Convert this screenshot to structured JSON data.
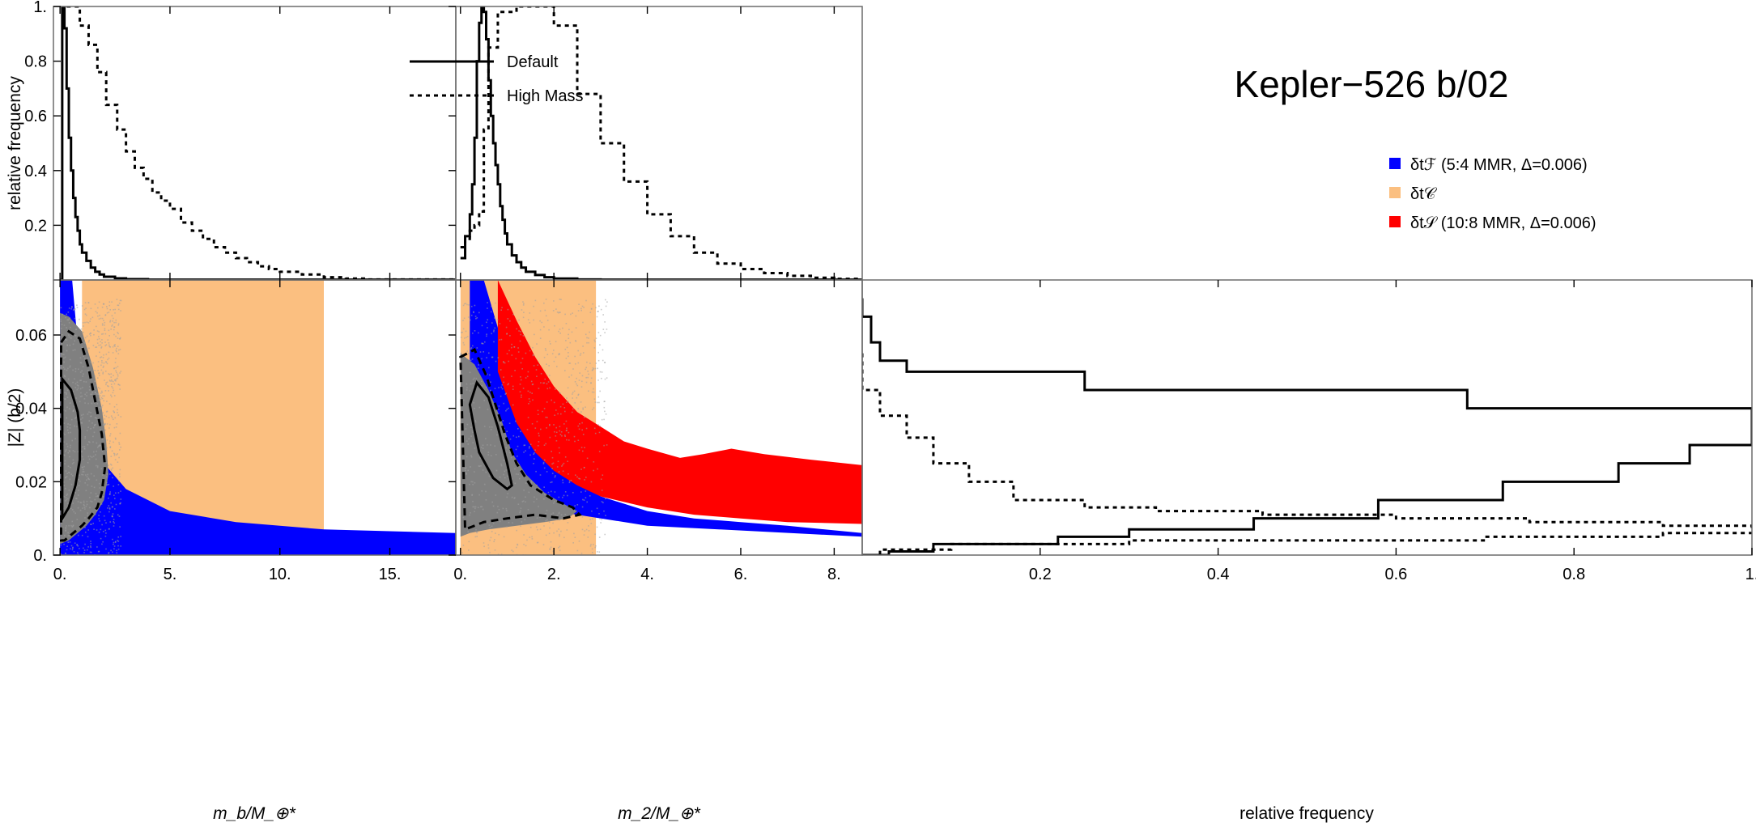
{
  "title": "Kepler−526 b/02",
  "colors": {
    "blue": "#0000ff",
    "orange": "#fbbf80",
    "red": "#ff0000",
    "gray": "#808080",
    "black": "#000000"
  },
  "legend_lines": [
    {
      "name": "Default",
      "style": "solid"
    },
    {
      "name": "High Mass",
      "style": "dotted"
    }
  ],
  "legend_regions": [
    {
      "name": "δtℱ (5:4 MMR, Δ=0.006)",
      "color": "#0000ff"
    },
    {
      "name": "δt𝒞",
      "color": "#fbbf80"
    },
    {
      "name": "δt𝒮 (10:8 MMR, Δ=0.006)",
      "color": "#ff0000"
    }
  ],
  "chart_data": [
    {
      "id": "hist-mb",
      "type": "line",
      "ylabel": "relative frequency",
      "xlim": [
        -0.3,
        18
      ],
      "ylim": [
        0,
        1
      ],
      "xticks": [
        "0.",
        "5.",
        "10.",
        "15."
      ],
      "yticks": [
        "0.2",
        "0.4",
        "0.6",
        "0.8",
        "1."
      ],
      "series": [
        {
          "name": "Default",
          "style": "solid",
          "x": [
            0,
            0.1,
            0.2,
            0.3,
            0.4,
            0.5,
            0.6,
            0.7,
            0.8,
            0.9,
            1.0,
            1.2,
            1.4,
            1.6,
            1.8,
            2.0,
            2.5,
            3.0,
            4.0,
            18
          ],
          "y": [
            0,
            1.0,
            0.92,
            0.7,
            0.52,
            0.4,
            0.3,
            0.23,
            0.18,
            0.13,
            0.1,
            0.07,
            0.045,
            0.03,
            0.02,
            0.012,
            0.006,
            0.003,
            0.001,
            0
          ]
        },
        {
          "name": "High Mass",
          "style": "dotted",
          "x": [
            0.3,
            0.9,
            1.3,
            1.7,
            2.1,
            2.6,
            3.0,
            3.4,
            3.8,
            4.2,
            4.6,
            5.0,
            5.5,
            6.0,
            6.5,
            7.0,
            7.5,
            8.0,
            8.5,
            9.0,
            9.5,
            10.0,
            11.0,
            12.0,
            13.0,
            14.0,
            18
          ],
          "y": [
            1.0,
            0.93,
            0.86,
            0.76,
            0.64,
            0.55,
            0.47,
            0.41,
            0.37,
            0.32,
            0.29,
            0.26,
            0.21,
            0.18,
            0.15,
            0.12,
            0.1,
            0.08,
            0.065,
            0.05,
            0.04,
            0.03,
            0.02,
            0.01,
            0.005,
            0.002,
            0.0
          ]
        }
      ]
    },
    {
      "id": "hist-m2",
      "type": "line",
      "xlim": [
        -0.1,
        8.6
      ],
      "ylim": [
        0,
        1
      ],
      "xticks": [
        "0.",
        "2.",
        "4.",
        "6.",
        "8."
      ],
      "series": [
        {
          "name": "Default",
          "style": "solid",
          "x": [
            0,
            0.1,
            0.2,
            0.25,
            0.3,
            0.35,
            0.4,
            0.45,
            0.5,
            0.55,
            0.6,
            0.65,
            0.7,
            0.75,
            0.8,
            0.85,
            0.9,
            0.95,
            1.0,
            1.1,
            1.2,
            1.3,
            1.4,
            1.6,
            1.8,
            2.0,
            2.5,
            3.0,
            8.6
          ],
          "y": [
            0.08,
            0.16,
            0.24,
            0.35,
            0.52,
            0.8,
            0.94,
            1.0,
            0.98,
            0.88,
            0.73,
            0.6,
            0.5,
            0.42,
            0.35,
            0.27,
            0.22,
            0.17,
            0.13,
            0.09,
            0.065,
            0.045,
            0.03,
            0.018,
            0.01,
            0.005,
            0.002,
            0.001,
            0
          ]
        },
        {
          "name": "High Mass",
          "style": "dotted",
          "x": [
            0,
            0.1,
            0.2,
            0.3,
            0.4,
            0.5,
            0.6,
            0.8,
            1.2,
            1.6,
            2.0,
            2.5,
            3.0,
            3.5,
            4.0,
            4.5,
            5.0,
            5.5,
            6.0,
            6.5,
            7.0,
            7.5,
            8.0,
            8.6
          ],
          "y": [
            0.12,
            0.15,
            0.18,
            0.2,
            0.25,
            0.55,
            0.85,
            0.98,
            1.0,
            1.0,
            0.93,
            0.68,
            0.5,
            0.36,
            0.24,
            0.16,
            0.1,
            0.06,
            0.04,
            0.025,
            0.015,
            0.008,
            0.004,
            0.0
          ]
        }
      ]
    },
    {
      "id": "scatter-mb",
      "type": "scatter",
      "xlabel": "m_b/M_⊕*",
      "ylabel": "|Z| (b/2)",
      "xlim": [
        -0.3,
        18
      ],
      "ylim": [
        0,
        0.075
      ],
      "xticks": [
        "0.",
        "5.",
        "10.",
        "15."
      ],
      "yticks": [
        "0.",
        "0.02",
        "0.04",
        "0.06"
      ],
      "regions": [
        {
          "name": "orange",
          "x": [
            1.0,
            12.0,
            12.0,
            1.0
          ],
          "y": [
            0.0,
            0.0,
            0.075,
            0.075
          ]
        },
        {
          "name": "blue",
          "x": [
            0.55,
            0.8,
            1.0,
            1.5,
            2.0,
            3.0,
            5.0,
            8.0,
            12.0,
            18.0,
            18.0,
            0.0,
            0.0
          ],
          "y": [
            0.075,
            0.058,
            0.047,
            0.033,
            0.025,
            0.018,
            0.012,
            0.009,
            0.007,
            0.006,
            0.0,
            0.0,
            0.075
          ]
        },
        {
          "name": "gray",
          "x": [
            0.0,
            0.4,
            1.0,
            1.5,
            1.9,
            2.1,
            2.2,
            2.0,
            1.6,
            1.2,
            0.8,
            0.4,
            0.0
          ],
          "y": [
            0.066,
            0.065,
            0.061,
            0.051,
            0.04,
            0.031,
            0.022,
            0.015,
            0.011,
            0.008,
            0.006,
            0.004,
            0.003
          ]
        }
      ],
      "contour_inner": {
        "x": [
          0.1,
          0.5,
          0.8,
          0.9,
          0.9,
          0.7,
          0.4,
          0.1,
          0.1
        ],
        "y": [
          0.048,
          0.045,
          0.039,
          0.034,
          0.026,
          0.019,
          0.013,
          0.01,
          0.048
        ]
      },
      "contour_outer": {
        "x": [
          0.05,
          0.4,
          0.9,
          1.3,
          1.6,
          1.9,
          2.05,
          1.9,
          1.7,
          1.3,
          1.0,
          0.6,
          0.2,
          0.05,
          0.05
        ],
        "y": [
          0.058,
          0.061,
          0.059,
          0.051,
          0.042,
          0.033,
          0.024,
          0.017,
          0.013,
          0.01,
          0.008,
          0.006,
          0.004,
          0.004,
          0.058
        ]
      }
    },
    {
      "id": "scatter-m2",
      "type": "scatter",
      "xlabel": "m_2/M_⊕*",
      "xlim": [
        -0.1,
        8.6
      ],
      "ylim": [
        0,
        0.075
      ],
      "xticks": [
        "0.",
        "2.",
        "4.",
        "6.",
        "8."
      ],
      "regions": [
        {
          "name": "orange",
          "x": [
            0.0,
            2.9,
            2.9,
            0.0
          ],
          "y": [
            0.0,
            0.0,
            0.075,
            0.075
          ]
        },
        {
          "name": "blue",
          "x": [
            0.2,
            0.5,
            0.8,
            1.2,
            1.6,
            2.0,
            2.5,
            3.0,
            4.0,
            5.0,
            6.0,
            7.0,
            8.6,
            8.6,
            4.0,
            2.0,
            1.0,
            0.5,
            0.2
          ],
          "y": [
            0.075,
            0.075,
            0.062,
            0.044,
            0.033,
            0.026,
            0.02,
            0.016,
            0.012,
            0.01,
            0.009,
            0.008,
            0.006,
            0.005,
            0.008,
            0.012,
            0.02,
            0.03,
            0.04
          ]
        },
        {
          "name": "red",
          "x": [
            0.8,
            1.2,
            1.6,
            2.0,
            2.5,
            3.0,
            3.5,
            4.0,
            4.7,
            5.2,
            5.8,
            6.5,
            7.5,
            8.6,
            8.6,
            7.0,
            6.0,
            5.0,
            4.0,
            3.0,
            2.5,
            2.0,
            1.6,
            1.2,
            0.8
          ],
          "y": [
            0.075,
            0.064,
            0.054,
            0.046,
            0.039,
            0.035,
            0.031,
            0.029,
            0.0265,
            0.0275,
            0.029,
            0.0275,
            0.026,
            0.0245,
            0.0085,
            0.009,
            0.01,
            0.011,
            0.013,
            0.016,
            0.019,
            0.023,
            0.028,
            0.036,
            0.05
          ]
        },
        {
          "name": "gray",
          "x": [
            0.0,
            0.3,
            0.6,
            0.9,
            1.1,
            1.4,
            1.8,
            2.2,
            2.5,
            2.3,
            1.8,
            1.2,
            0.6,
            0.2,
            0.0
          ],
          "y": [
            0.055,
            0.052,
            0.045,
            0.036,
            0.028,
            0.022,
            0.017,
            0.014,
            0.012,
            0.01,
            0.009,
            0.008,
            0.007,
            0.006,
            0.005
          ]
        }
      ],
      "contour_inner": {
        "x": [
          0.2,
          0.35,
          0.6,
          0.8,
          1.0,
          1.1,
          1.0,
          0.7,
          0.4,
          0.3,
          0.2
        ],
        "y": [
          0.041,
          0.047,
          0.043,
          0.035,
          0.025,
          0.019,
          0.018,
          0.021,
          0.028,
          0.034,
          0.041
        ]
      },
      "contour_outer": {
        "x": [
          0.0,
          0.3,
          0.55,
          0.75,
          0.95,
          1.2,
          1.5,
          2.0,
          2.4,
          2.55,
          2.2,
          1.6,
          1.0,
          0.5,
          0.1,
          0.0
        ],
        "y": [
          0.054,
          0.056,
          0.049,
          0.041,
          0.033,
          0.025,
          0.019,
          0.015,
          0.013,
          0.011,
          0.01,
          0.011,
          0.01,
          0.009,
          0.007,
          0.054
        ]
      }
    },
    {
      "id": "hist-Z",
      "type": "line",
      "xlabel": "relative frequency",
      "xlim": [
        0,
        1
      ],
      "ylim": [
        0,
        0.075
      ],
      "xticks": [
        "0.2",
        "0.4",
        "0.6",
        "0.8",
        "1."
      ],
      "series": [
        {
          "name": "Default",
          "style": "solid",
          "x": [
            0.0,
            0.01,
            0.02,
            0.05,
            0.1,
            0.25,
            0.25,
            0.68,
            0.68,
            1.0,
            1.0,
            0.93,
            0.85,
            0.72,
            0.58,
            0.44,
            0.3,
            0.22,
            0.08,
            0.03,
            0.0
          ],
          "y": [
            0.07,
            0.065,
            0.058,
            0.053,
            0.05,
            0.05,
            0.045,
            0.045,
            0.04,
            0.04,
            0.035,
            0.03,
            0.025,
            0.02,
            0.015,
            0.01,
            0.007,
            0.005,
            0.003,
            0.001,
            0.0
          ]
        },
        {
          "name": "High Mass",
          "style": "dotted",
          "x": [
            0.0,
            0.02,
            0.05,
            0.08,
            0.12,
            0.17,
            0.25,
            0.33,
            0.45,
            0.6,
            0.75,
            0.9,
            1.0,
            1.0,
            0.9,
            0.7,
            0.3,
            0.1,
            0.02,
            0.0
          ],
          "y": [
            0.055,
            0.045,
            0.038,
            0.032,
            0.025,
            0.02,
            0.015,
            0.013,
            0.012,
            0.011,
            0.01,
            0.009,
            0.008,
            0.006,
            0.006,
            0.005,
            0.004,
            0.003,
            0.0015,
            0.0
          ]
        }
      ]
    }
  ]
}
